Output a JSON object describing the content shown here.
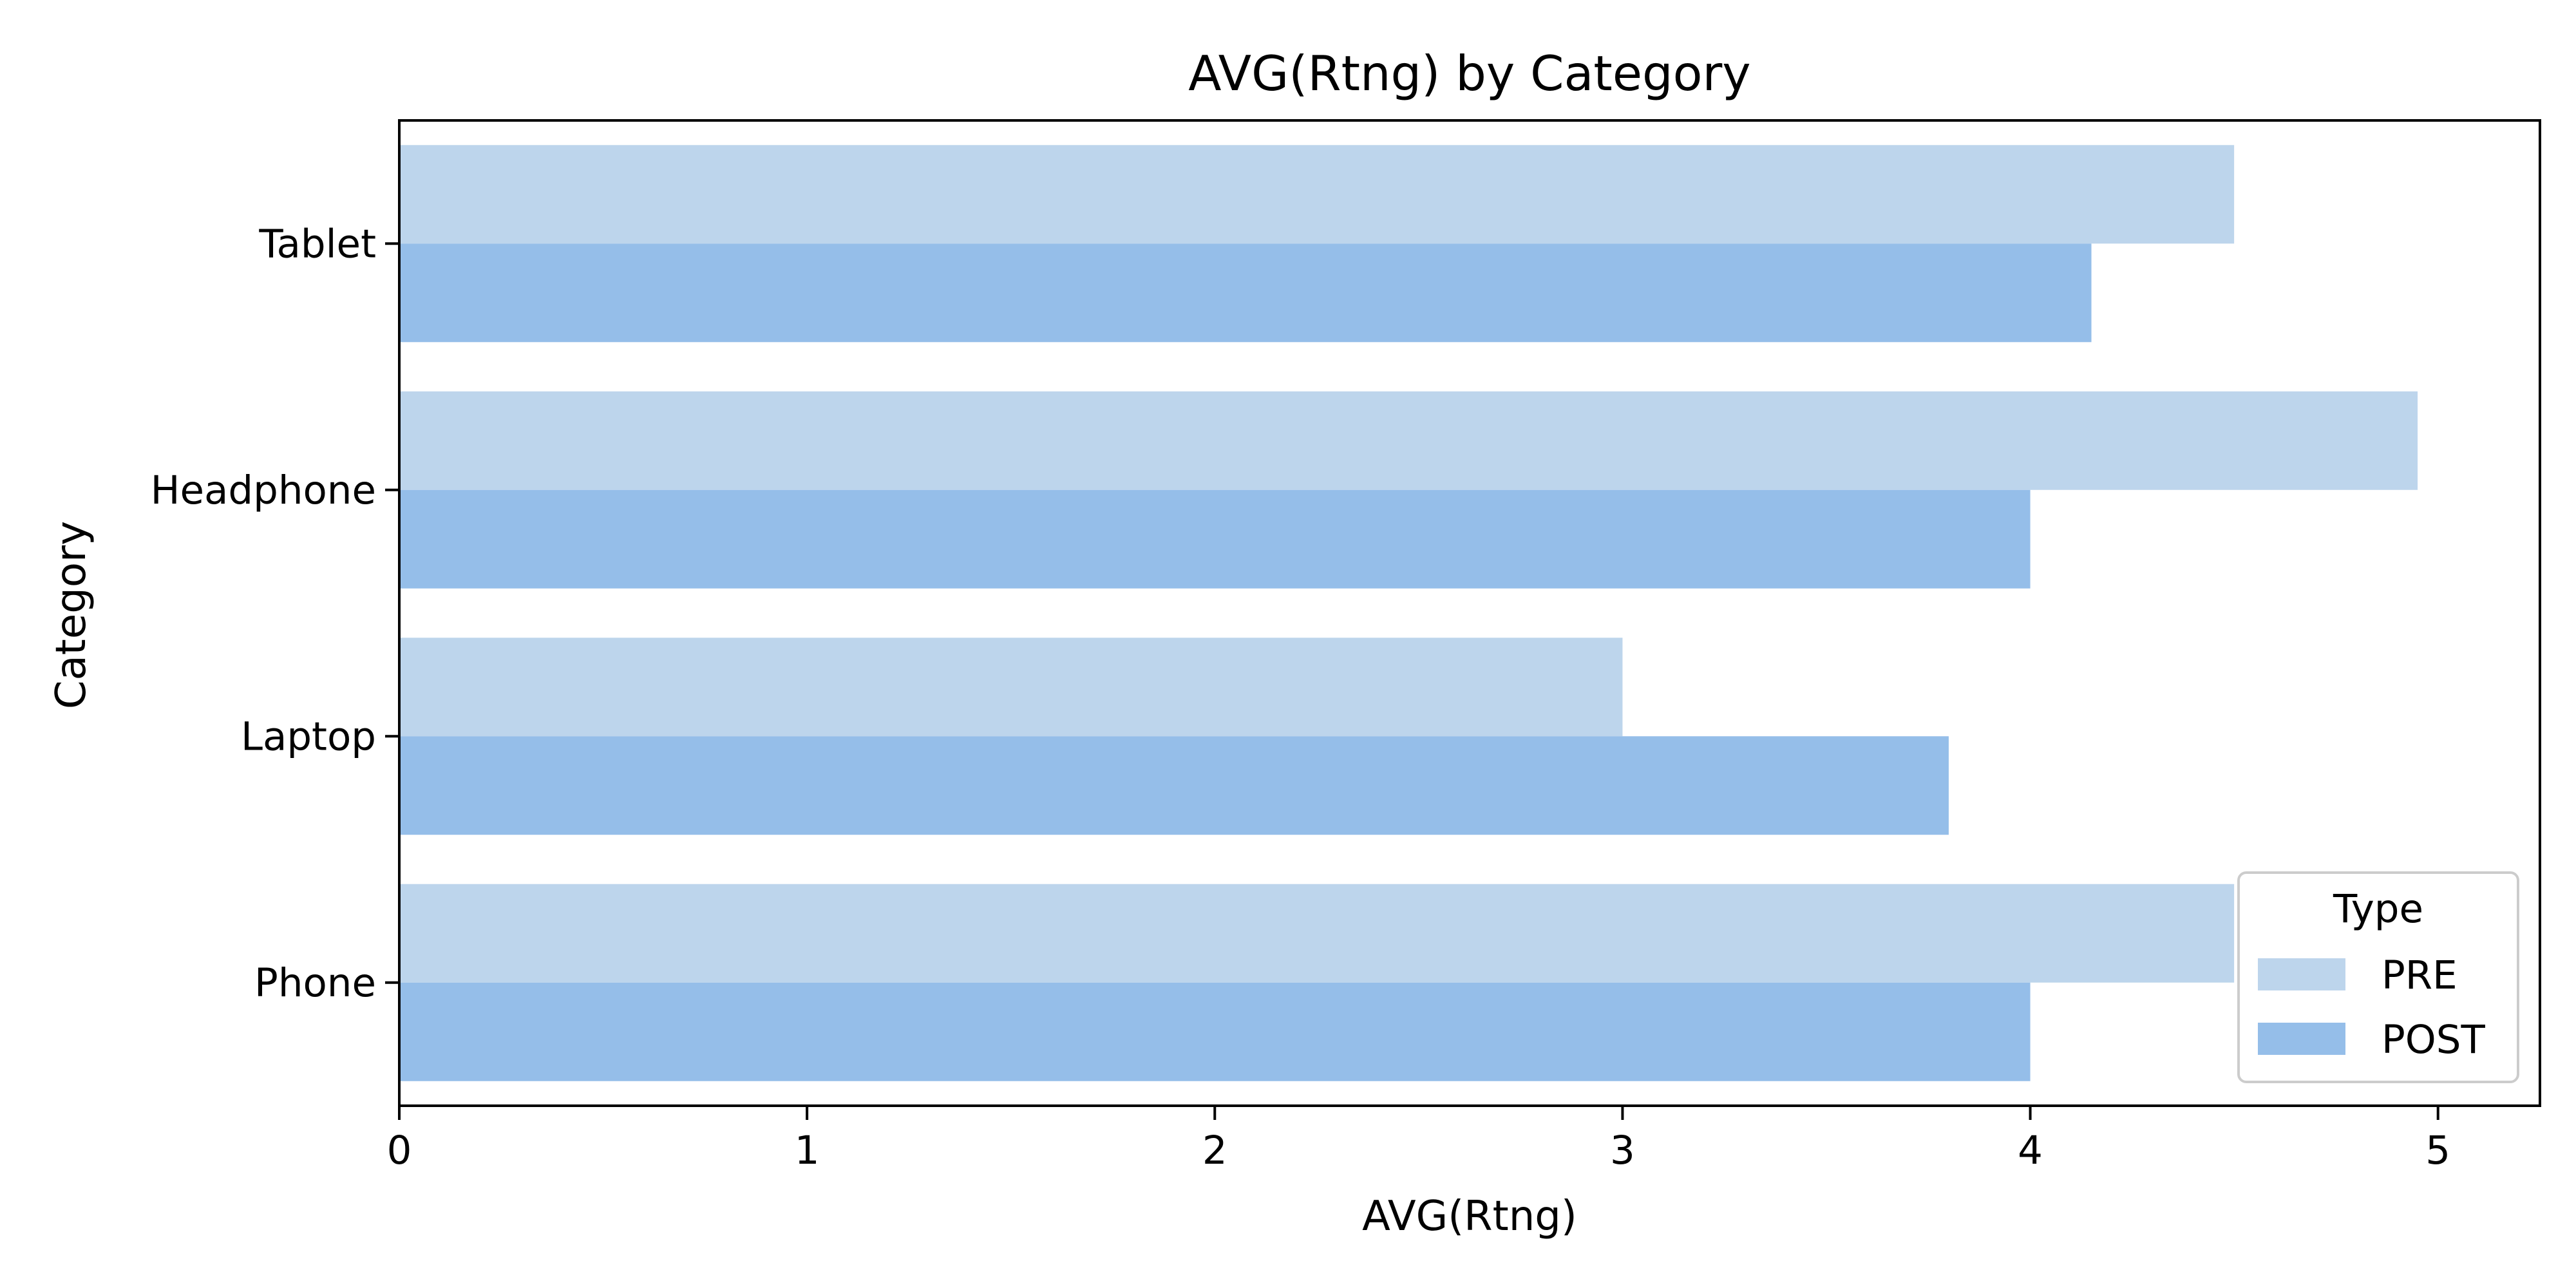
{
  "chart_data": {
    "type": "bar",
    "orientation": "horizontal",
    "title": "AVG(Rtng) by Category",
    "xlabel": "AVG(Rtng)",
    "ylabel": "Category",
    "categories": [
      "Tablet",
      "Headphone",
      "Laptop",
      "Phone"
    ],
    "xlim": [
      0,
      5.25
    ],
    "xticks": [
      "0",
      "1",
      "2",
      "3",
      "4",
      "5"
    ],
    "grid": false,
    "legend": {
      "title": "Type",
      "position": "bottom-right"
    },
    "series": [
      {
        "name": "PRE",
        "color": "#bdd5ec",
        "values": [
          4.5,
          4.95,
          3.0,
          4.5
        ]
      },
      {
        "name": "POST",
        "color": "#95bee9",
        "values": [
          4.15,
          4.0,
          3.8,
          4.0
        ]
      }
    ]
  }
}
